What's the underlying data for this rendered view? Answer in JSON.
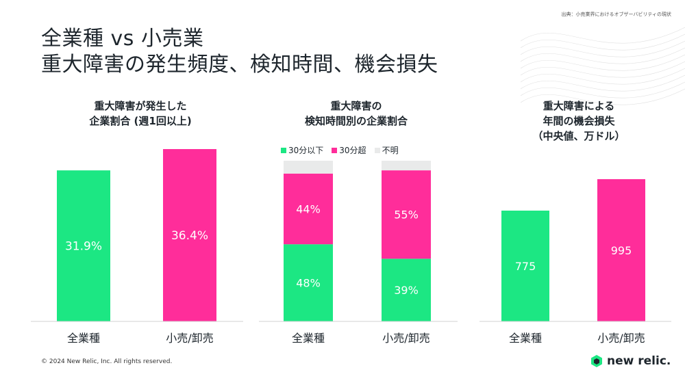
{
  "source": "出典：小売業界におけるオブザーバビリティの現状",
  "title_line1": "全業種 vs 小売業",
  "title_line2": "重大障害の発生頻度、検知時間、機会損失",
  "footer": "© 2024 New Relic, Inc. All rights reserved.",
  "logo_text": "new relic.",
  "colors": {
    "green": "#1ce783",
    "pink": "#ff2d9a",
    "gray": "#e9eaea",
    "text": "#1d252c"
  },
  "chart_data": [
    {
      "type": "bar",
      "title_line1": "重大障害が発生した",
      "title_line2": "企業割合 (週1回以上)",
      "categories": [
        "全業種",
        "小売/卸売"
      ],
      "values": [
        31.9,
        36.4
      ],
      "labels": [
        "31.9%",
        "36.4%"
      ]
    },
    {
      "type": "bar",
      "stacked": true,
      "title_line1": "重大障害の",
      "title_line2": "検知時間別の企業割合",
      "categories": [
        "全業種",
        "小売/卸売"
      ],
      "series": [
        {
          "name": "30分以下",
          "values": [
            48,
            39
          ],
          "labels": [
            "48%",
            "39%"
          ]
        },
        {
          "name": "30分超",
          "values": [
            44,
            55
          ],
          "labels": [
            "44%",
            "55%"
          ]
        },
        {
          "name": "不明",
          "values": [
            8,
            6
          ]
        }
      ]
    },
    {
      "type": "bar",
      "title_line1": "重大障害による",
      "title_line2": "年間の機会損失",
      "title_line3": "（中央値、万ドル）",
      "categories": [
        "全業種",
        "小売/卸売"
      ],
      "values": [
        775,
        995
      ],
      "labels": [
        "775",
        "995"
      ]
    }
  ]
}
